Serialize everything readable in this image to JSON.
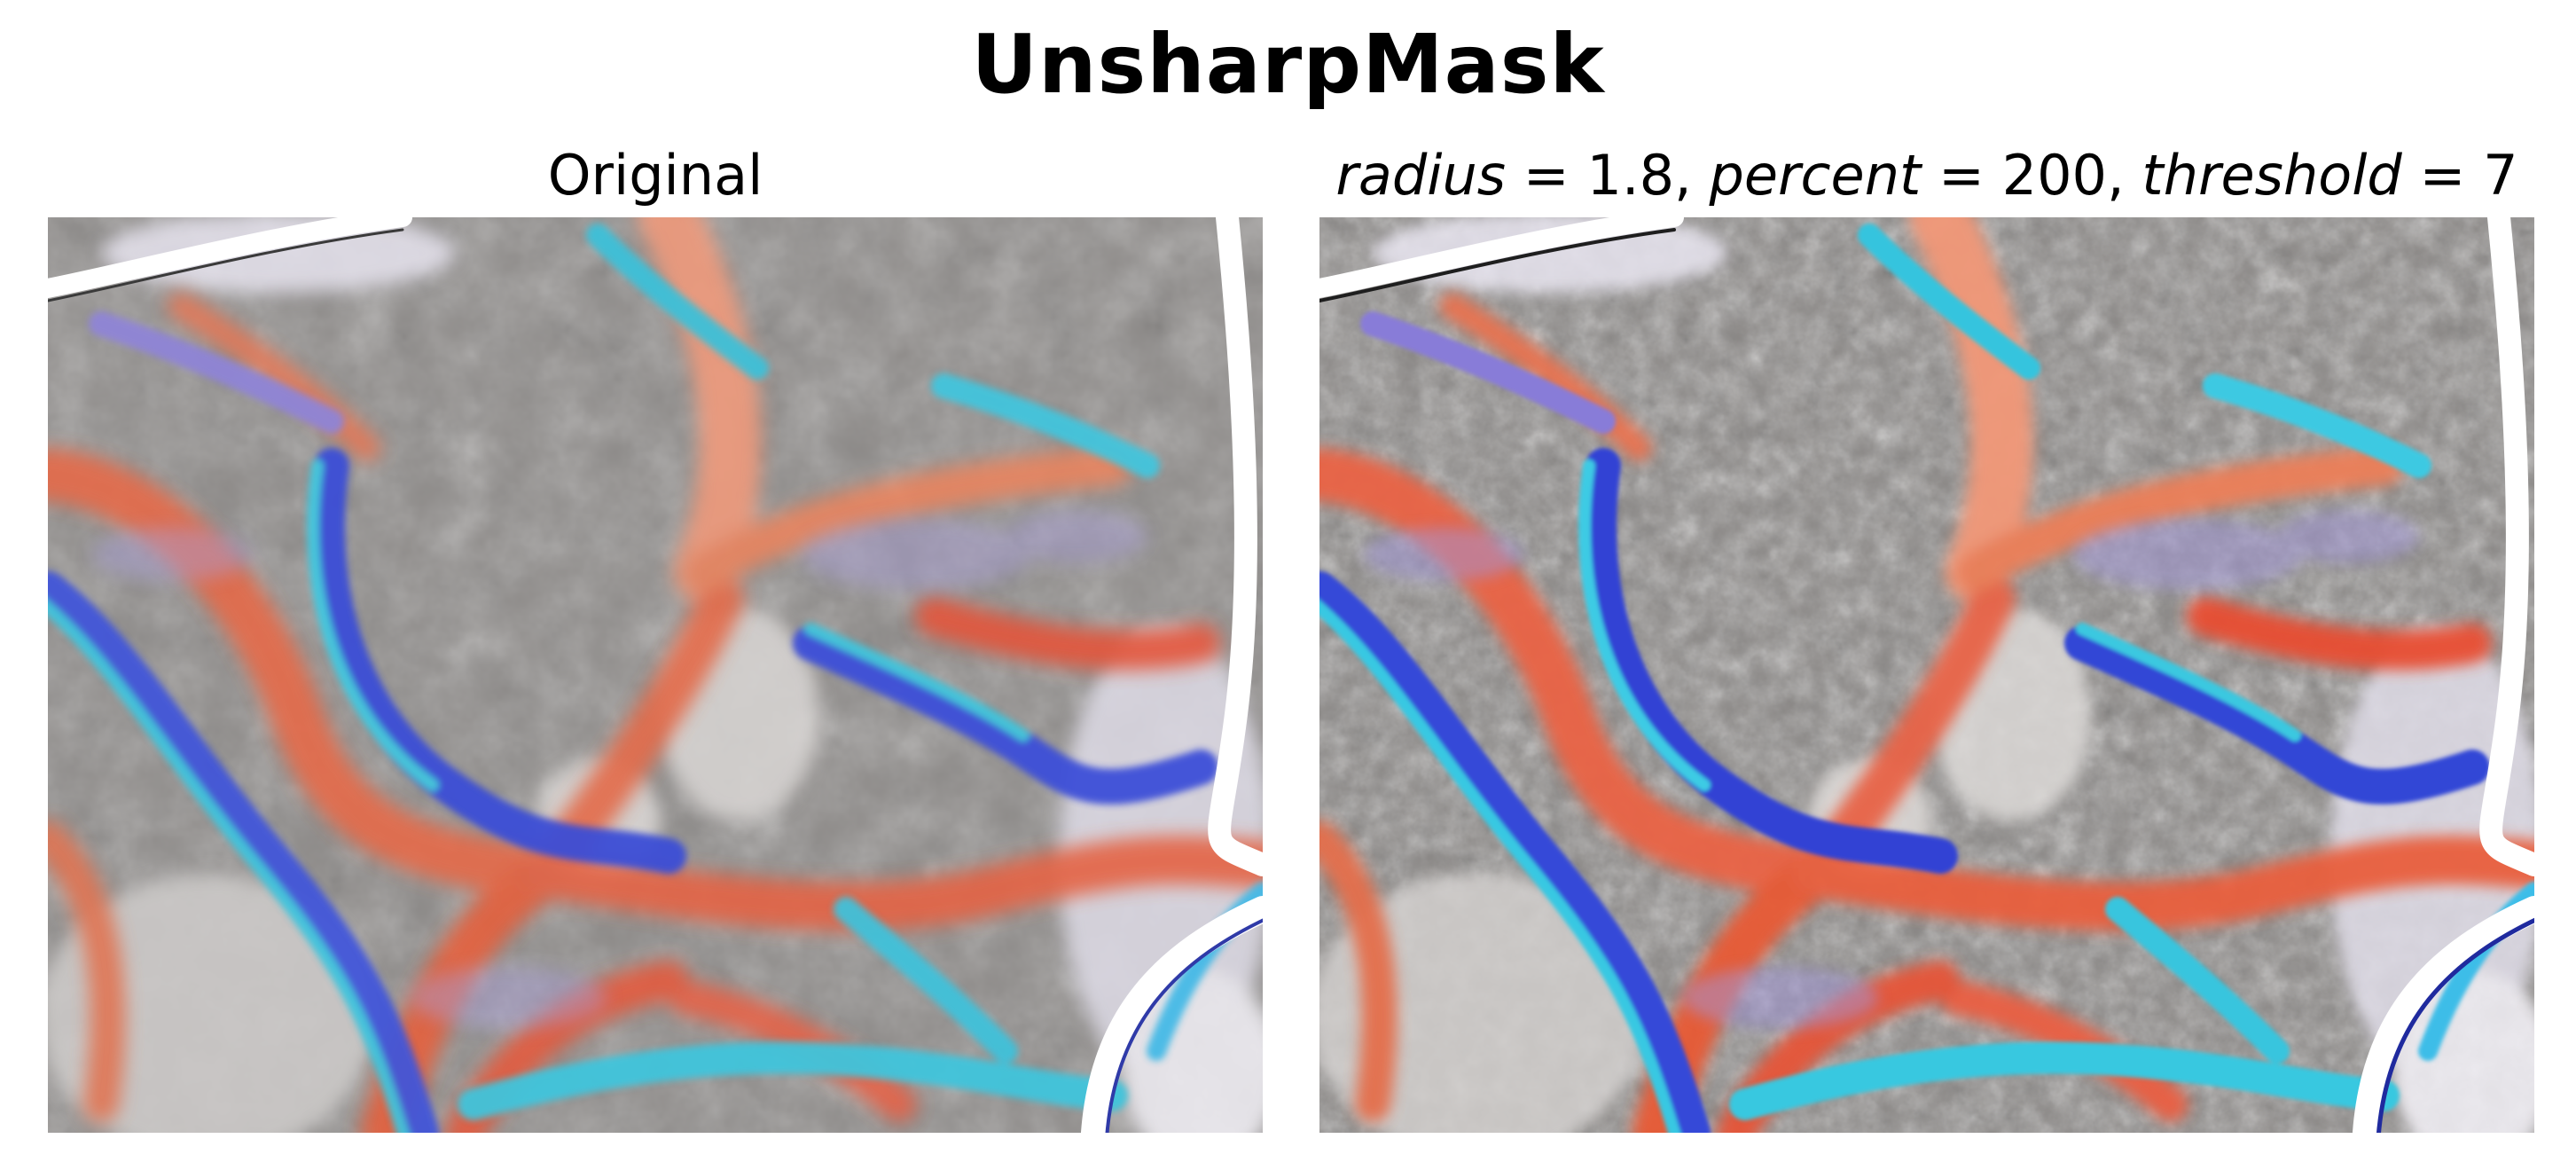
{
  "figure": {
    "suptitle": "UnsharpMask",
    "panels": [
      {
        "title": "Original"
      },
      {
        "title_parts": [
          {
            "text": "radius",
            "italic": true
          },
          {
            "text": " = 1.8, ",
            "italic": false
          },
          {
            "text": "percent",
            "italic": true
          },
          {
            "text": " = 200, ",
            "italic": false
          },
          {
            "text": "threshold",
            "italic": true
          },
          {
            "text": " = 7",
            "italic": false
          }
        ]
      }
    ],
    "image_content": "colored shaded-relief terrain map",
    "colors": {
      "ridge": "#e8633f",
      "valley_blue": "#3a4fd8",
      "valley_cyan": "#3fc3dc",
      "lavender": "#a99fd6",
      "hillshade_gray": "#8c8a88"
    }
  }
}
